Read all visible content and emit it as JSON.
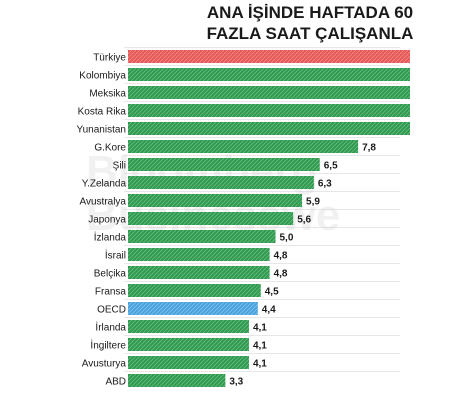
{
  "title_lines": [
    "ANA İŞİNDE HAFTADA 60",
    "FAZLA SAAT ÇALIŞANLA"
  ],
  "watermark_lines": [
    "Bloomberg",
    "Businesswe"
  ],
  "colors": {
    "default_bar": "#2e9b4e",
    "highlight_bar": "#e85a57",
    "reference_bar": "#4aa3df",
    "stripe": "#ffffff",
    "label_text": "#1a1a1a",
    "separator": "#d0d0d0"
  },
  "chart_data": {
    "type": "bar",
    "orientation": "horizontal",
    "title": "ANA İŞİNDE HAFTADA 60 FAZLA SAAT ÇALIŞANLA",
    "categories": [
      "Türkiye",
      "Kolombiya",
      "Meksika",
      "Kosta Rika",
      "Yunanistan",
      "G.Kore",
      "Şili",
      "Y.Zelanda",
      "Avustralya",
      "Japonya",
      "İzlanda",
      "İsrail",
      "Belçika",
      "Fransa",
      "OECD",
      "İrlanda",
      "İngiltere",
      "Avusturya",
      "ABD"
    ],
    "values": [
      null,
      null,
      null,
      null,
      null,
      7.8,
      6.5,
      6.3,
      5.9,
      5.6,
      5.0,
      4.8,
      4.8,
      4.5,
      4.4,
      4.1,
      4.1,
      4.1,
      3.3
    ],
    "value_labels": [
      "",
      "",
      "",
      "",
      "",
      "7,8",
      "6,5",
      "6,3",
      "5,9",
      "5,6",
      "5,0",
      "4,8",
      "4,8",
      "4,5",
      "4,4",
      "4,1",
      "4,1",
      "4,1",
      "3,3"
    ],
    "bar_colors": [
      "highlight_bar",
      "default_bar",
      "default_bar",
      "default_bar",
      "default_bar",
      "default_bar",
      "default_bar",
      "default_bar",
      "default_bar",
      "default_bar",
      "default_bar",
      "default_bar",
      "default_bar",
      "default_bar",
      "reference_bar",
      "default_bar",
      "default_bar",
      "default_bar",
      "default_bar"
    ],
    "bars_extend_past_view": [
      true,
      true,
      true,
      true,
      true,
      false,
      false,
      false,
      false,
      false,
      false,
      false,
      false,
      false,
      false,
      false,
      false,
      false,
      false
    ],
    "xlim": [
      0,
      13
    ],
    "grid": false,
    "legend": "none"
  }
}
